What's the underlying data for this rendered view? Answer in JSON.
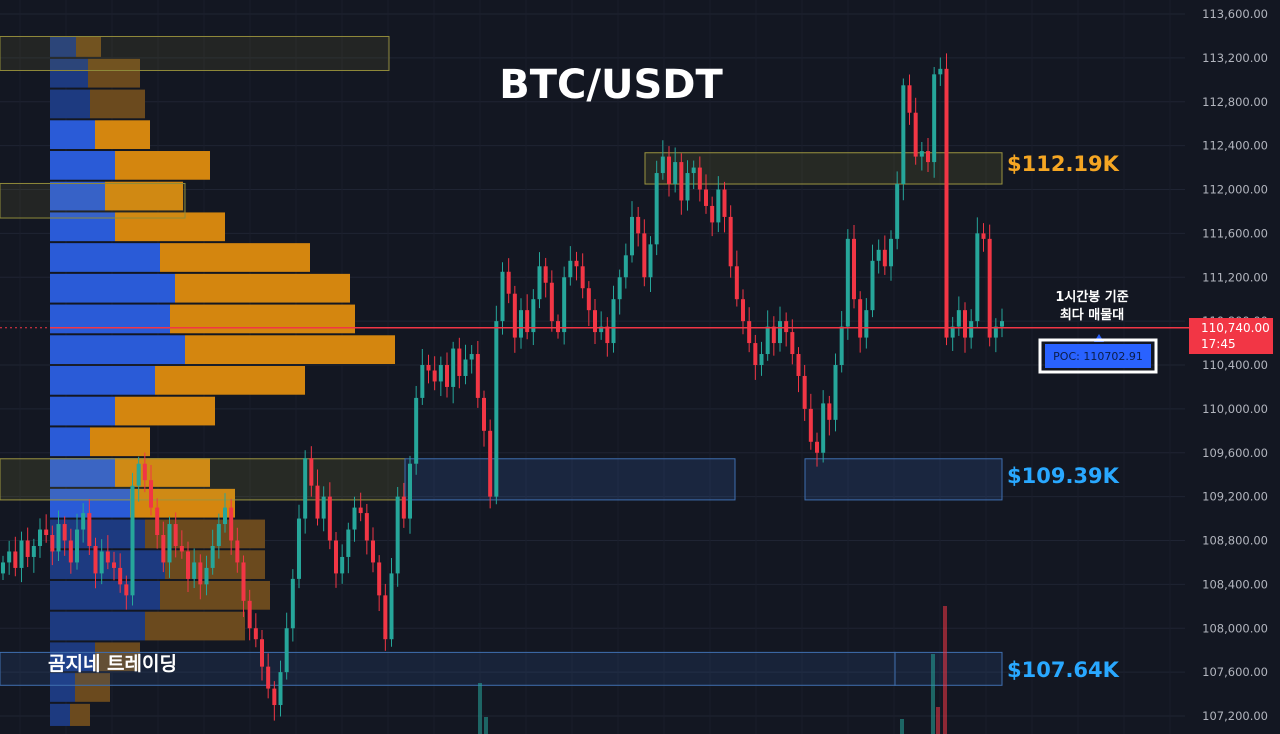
{
  "chart_data": {
    "type": "candlestick",
    "title": "BTC/USDT",
    "y_axis": {
      "min": 107100,
      "max": 113700,
      "ticks": [
        "113,600.00",
        "113,200.00",
        "112,800.00",
        "112,400.00",
        "112,000.00",
        "111,600.00",
        "111,200.00",
        "110,800.00",
        "110,400.00",
        "110,000.00",
        "109,600.00",
        "109,200.00",
        "108,800.00",
        "108,400.00",
        "108,000.00",
        "107,600.00",
        "107,200.00"
      ]
    },
    "current_price": {
      "value": 110740,
      "label": "110,740.00",
      "countdown": "17:45",
      "color": "#f23645"
    },
    "poc": {
      "label": "POC: 110702.91",
      "value": 110702.91,
      "note_line1": "1시간봉 기준",
      "note_line2": "최다 매물대"
    },
    "levels": [
      {
        "label": "$112.19K",
        "value": 112190,
        "color": "#f5a623"
      },
      {
        "label": "$109.39K",
        "value": 109390,
        "color": "#29a8ff"
      },
      {
        "label": "$107.64K",
        "value": 107640,
        "color": "#29a8ff"
      }
    ],
    "volume_profile_rows": [
      {
        "low": 113200,
        "high": 113400,
        "buy": 26,
        "sell": 25
      },
      {
        "low": 112920,
        "high": 113200,
        "buy": 38,
        "sell": 52
      },
      {
        "low": 112640,
        "high": 112920,
        "buy": 40,
        "sell": 55
      },
      {
        "low": 112360,
        "high": 112640,
        "buy": 45,
        "sell": 55
      },
      {
        "low": 112080,
        "high": 112360,
        "buy": 65,
        "sell": 95
      },
      {
        "low": 111800,
        "high": 112080,
        "buy": 55,
        "sell": 78
      },
      {
        "low": 111520,
        "high": 111800,
        "buy": 65,
        "sell": 110
      },
      {
        "low": 111240,
        "high": 111520,
        "buy": 110,
        "sell": 150
      },
      {
        "low": 110960,
        "high": 111240,
        "buy": 125,
        "sell": 175
      },
      {
        "low": 110680,
        "high": 110960,
        "buy": 120,
        "sell": 185
      },
      {
        "low": 110400,
        "high": 110680,
        "buy": 135,
        "sell": 210
      },
      {
        "low": 110120,
        "high": 110400,
        "buy": 105,
        "sell": 150
      },
      {
        "low": 109840,
        "high": 110120,
        "buy": 65,
        "sell": 100
      },
      {
        "low": 109560,
        "high": 109840,
        "buy": 40,
        "sell": 60
      },
      {
        "low": 109280,
        "high": 109560,
        "buy": 65,
        "sell": 95
      },
      {
        "low": 109000,
        "high": 109280,
        "buy": 80,
        "sell": 105
      },
      {
        "low": 108720,
        "high": 109000,
        "buy": 95,
        "sell": 120
      },
      {
        "low": 108440,
        "high": 108720,
        "buy": 115,
        "sell": 100
      },
      {
        "low": 108160,
        "high": 108440,
        "buy": 110,
        "sell": 110
      },
      {
        "low": 107880,
        "high": 108160,
        "buy": 95,
        "sell": 100
      },
      {
        "low": 107600,
        "high": 107880,
        "buy": 45,
        "sell": 45
      },
      {
        "low": 107320,
        "high": 107600,
        "buy": 25,
        "sell": 35
      },
      {
        "low": 107100,
        "high": 107320,
        "buy": 20,
        "sell": 20
      }
    ],
    "candle_closes": [
      108600,
      108700,
      108550,
      108800,
      108650,
      108750,
      108900,
      108850,
      108700,
      108950,
      108800,
      108600,
      108900,
      109050,
      108750,
      108500,
      108700,
      108600,
      108550,
      108400,
      108300,
      109300,
      109500,
      109350,
      109100,
      108850,
      108600,
      108950,
      108750,
      108700,
      108450,
      108600,
      108400,
      108550,
      108750,
      108950,
      109100,
      108800,
      108600,
      108250,
      108000,
      107900,
      107650,
      107450,
      107300,
      107600,
      108000,
      108450,
      109000,
      109550,
      109300,
      109000,
      109200,
      108800,
      108500,
      108650,
      108900,
      109100,
      109050,
      108800,
      108600,
      108300,
      107900,
      108500,
      109200,
      109000,
      109500,
      110100,
      110400,
      110350,
      110250,
      110400,
      110200,
      110550,
      110300,
      110450,
      110500,
      110100,
      109800,
      109200,
      110800,
      111250,
      111050,
      110650,
      110900,
      110700,
      111000,
      111300,
      111150,
      110800,
      110700,
      111200,
      111350,
      111300,
      111100,
      110900,
      110700,
      110750,
      110600,
      111000,
      111200,
      111400,
      111750,
      111600,
      111200,
      111500,
      112150,
      112300,
      112050,
      112250,
      111900,
      112150,
      112200,
      112000,
      111850,
      111700,
      112000,
      111750,
      111300,
      111000,
      110800,
      110600,
      110400,
      110500,
      110750,
      110600,
      110800,
      110700,
      110500,
      110300,
      110000,
      109700,
      109600,
      110050,
      109900,
      110400,
      110750,
      111550,
      111000,
      110650,
      110900,
      111350,
      111450,
      111300,
      111550,
      112050,
      112950,
      112700,
      112300,
      112350,
      112250,
      113050,
      113100,
      110650,
      110750,
      110900,
      110650,
      110800,
      111600,
      111550,
      110650,
      110750,
      110800
    ]
  }
}
